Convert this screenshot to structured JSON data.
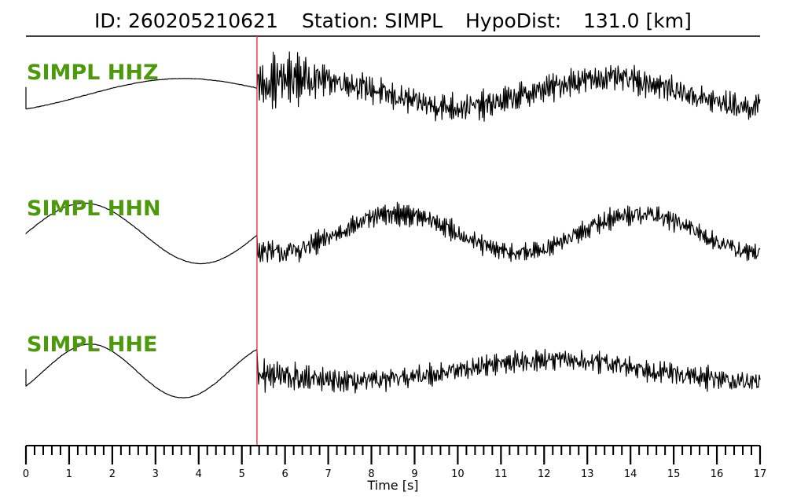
{
  "header": {
    "id_label": "ID: 260205210621",
    "station_label": "Station: SIMPL",
    "hypodist_label": "HypoDist:",
    "hypodist_value": "131.0 [km]"
  },
  "colors": {
    "label": "#4c9a0b",
    "trace": "#000000",
    "pick": "#e8262a"
  },
  "chart_data": {
    "type": "line",
    "xlabel": "Time [s]",
    "xlim": [
      0,
      17
    ],
    "major_ticks": [
      0,
      1,
      2,
      3,
      4,
      5,
      6,
      7,
      8,
      9,
      10,
      11,
      12,
      13,
      14,
      15,
      16,
      17
    ],
    "minor_tick_step": 0.2,
    "pick_time": 5.35,
    "channels": [
      {
        "name": "SIMPL HHZ",
        "pre": {
          "type": "sine",
          "t0": 0.0,
          "t_end": 5.35,
          "start": 0.62,
          "mid": -0.08,
          "period": 8.6,
          "phase": -1.0,
          "amp": 0.3,
          "slope": 0.02,
          "jump": 0.45
        },
        "post": {
          "low_amp": 0.3,
          "low_period": 7.0,
          "low_phase": 0.55,
          "noise": 0.42,
          "burst": 0.8
        },
        "ylim": [
          -1.0,
          1.0
        ]
      },
      {
        "name": "SIMPL HHN",
        "pre": {
          "type": "sine",
          "t0": 0.0,
          "t_end": 5.35,
          "start": 0.1,
          "mid": 0.0,
          "period": 5.4,
          "phase": 0.0,
          "amp": 0.62,
          "slope": 0.0,
          "jump": 0.0
        },
        "post": {
          "low_amp": 0.4,
          "low_period": 5.6,
          "low_phase": 4.2,
          "noise": 0.3,
          "burst": 0.4
        },
        "ylim": [
          -1.0,
          1.0
        ]
      },
      {
        "name": "SIMPL HHE",
        "pre": {
          "type": "sine",
          "t0": 0.0,
          "t_end": 5.35,
          "start": -0.35,
          "mid": 0.0,
          "period": 4.3,
          "phase": -0.6,
          "amp": 0.55,
          "slope": 0.0,
          "jump": 0.35
        },
        "post": {
          "low_amp": 0.22,
          "low_period": 9.5,
          "low_phase": 3.3,
          "noise": 0.34,
          "burst": 0.6
        },
        "ylim": [
          -1.0,
          1.0
        ]
      }
    ]
  }
}
